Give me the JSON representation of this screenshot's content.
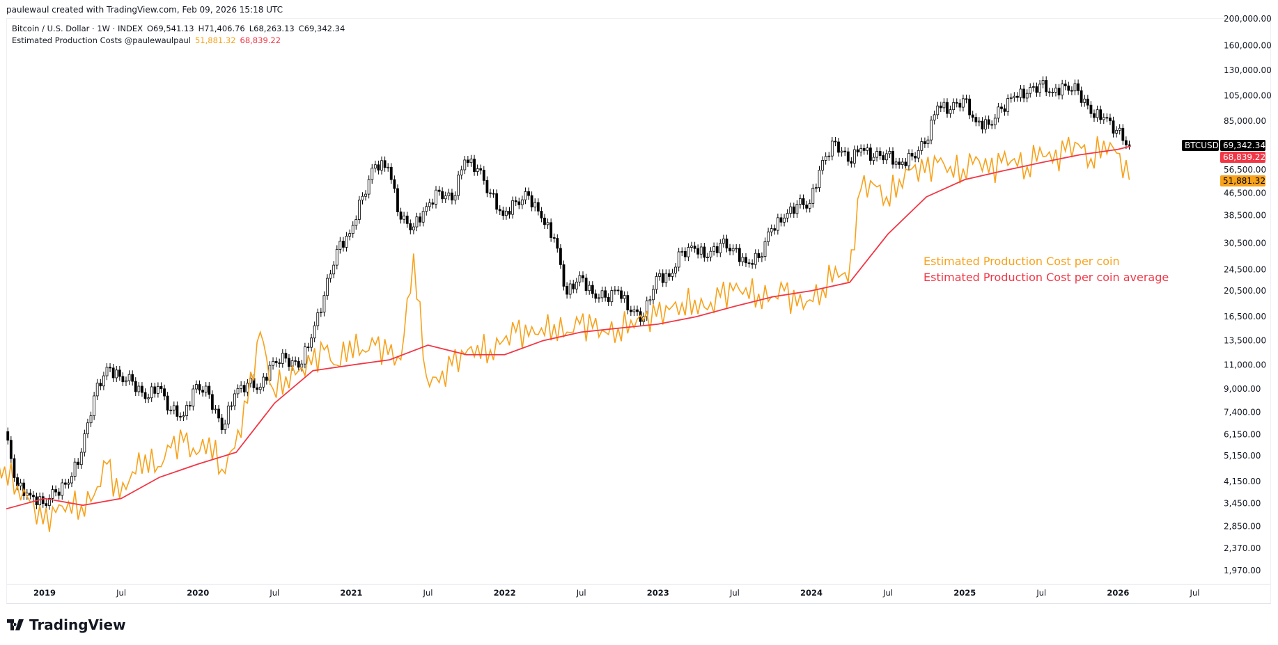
{
  "credit": "paulewaul created with TradingView.com, Feb 09, 2026 15:18 UTC",
  "legend": {
    "symbol": "Bitcoin / U.S. Dollar · 1W · INDEX",
    "open": "O69,541.13",
    "high": "H71,406.76",
    "low": "L68,263.13",
    "close": "C69,342.34",
    "indicator": "Estimated Production Costs @paulewaulpaul",
    "ind_val1": "51,881.32",
    "ind_val2": "68,839.22"
  },
  "price_labels": {
    "ticker": "BTCUSD",
    "last": "69,342.34",
    "avg": "68,839.22",
    "cost": "51,881.32"
  },
  "annotations": {
    "cost": "Estimated Production Cost per coin",
    "avg": "Estimated Production Cost per coin average"
  },
  "logo": "TradingView",
  "colors": {
    "cost": "#f7a21b",
    "avg": "#f23645",
    "up": "#ffffff",
    "down": "#000000"
  },
  "chart_data": {
    "type": "line",
    "title": "Bitcoin / U.S. Dollar · 1W · INDEX",
    "yscale": "log",
    "ylim": [
      1800,
      210000
    ],
    "y_ticks": [
      "200,000.00",
      "160,000.00",
      "130,000.00",
      "105,000.00",
      "85,000.00",
      "56,500.00",
      "46,500.00",
      "38,500.00",
      "30,500.00",
      "24,500.00",
      "20,500.00",
      "16,500.00",
      "13,500.00",
      "11,000.00",
      "9,000.00",
      "7,400.00",
      "6,150.00",
      "5,150.00",
      "4,150.00",
      "3,450.00",
      "2,850.00",
      "2,370.00",
      "1,970.00"
    ],
    "x_ticks": [
      {
        "label": "2019",
        "m": 3,
        "bold": true
      },
      {
        "label": "Jul",
        "m": 9
      },
      {
        "label": "2020",
        "m": 15,
        "bold": true
      },
      {
        "label": "Jul",
        "m": 21
      },
      {
        "label": "2021",
        "m": 27,
        "bold": true
      },
      {
        "label": "Jul",
        "m": 33
      },
      {
        "label": "2022",
        "m": 39,
        "bold": true
      },
      {
        "label": "Jul",
        "m": 45
      },
      {
        "label": "2023",
        "m": 51,
        "bold": true
      },
      {
        "label": "Jul",
        "m": 57
      },
      {
        "label": "2024",
        "m": 63,
        "bold": true
      },
      {
        "label": "Jul",
        "m": 69
      },
      {
        "label": "2025",
        "m": 75,
        "bold": true
      },
      {
        "label": "Jul",
        "m": 81
      },
      {
        "label": "2026",
        "m": 87,
        "bold": true
      },
      {
        "label": "Jul",
        "m": 93
      }
    ],
    "month_start": "2018-10",
    "btc_monthly_close": [
      6300,
      4000,
      3700,
      3450,
      3800,
      4100,
      5300,
      8500,
      10800,
      10000,
      9600,
      8300,
      9200,
      7550,
      7200,
      9350,
      8600,
      6400,
      8650,
      9450,
      9150,
      11350,
      11650,
      10800,
      13800,
      19700,
      29000,
      33100,
      45200,
      58900,
      57700,
      37300,
      35000,
      41500,
      47100,
      43800,
      61300,
      57000,
      46300,
      38500,
      43200,
      45500,
      37700,
      31800,
      19900,
      23300,
      20000,
      19400,
      20500,
      17200,
      16500,
      23100,
      23100,
      28500,
      29200,
      27200,
      30500,
      29200,
      25900,
      27000,
      34500,
      37700,
      42300,
      42600,
      61100,
      71300,
      60600,
      67500,
      62700,
      64600,
      59000,
      63300,
      70200,
      96400,
      93400,
      102400,
      84300,
      82500,
      94200,
      104600,
      107100,
      115700,
      108200,
      114000,
      109500,
      90400,
      87500,
      78600,
      69342.34
    ],
    "series": [
      {
        "name": "Estimated Production Cost per coin",
        "values": [
          4700,
          4000,
          3500,
          2900,
          3200,
          3500,
          3400,
          3700,
          4800,
          3600,
          4500,
          5200,
          4700,
          5500,
          5800,
          5200,
          6000,
          4600,
          5500,
          8000,
          14500,
          9000,
          10000,
          10500,
          11000,
          12500,
          11000,
          13500,
          12500,
          13000,
          12000,
          11500,
          28000,
          10000,
          9500,
          11000,
          12000,
          13000,
          12500,
          13500,
          14500,
          14000,
          15000,
          15500,
          14500,
          15500,
          15000,
          14500,
          15000,
          16000,
          16000,
          16500,
          17500,
          18500,
          19000,
          17500,
          19500,
          20500,
          21000,
          20000,
          19500,
          20500,
          18000,
          19000,
          21000,
          25000,
          22000,
          48000,
          50000,
          45000,
          52000,
          57000,
          55000,
          60000,
          58000,
          57000,
          63000,
          55000,
          60000,
          62000,
          58000,
          68000,
          60000,
          66000,
          70000,
          62000,
          72000,
          65000,
          51881.32
        ]
      },
      {
        "name": "Estimated Production Cost per coin average",
        "months": [
          0,
          3,
          6,
          9,
          12,
          15,
          18,
          21,
          24,
          27,
          30,
          33,
          36,
          39,
          42,
          45,
          48,
          51,
          54,
          57,
          60,
          63,
          66,
          69,
          72,
          75,
          78,
          81,
          84,
          87,
          88
        ],
        "values": [
          3300,
          3600,
          3400,
          3600,
          4300,
          4800,
          5300,
          8000,
          10500,
          11000,
          11500,
          13000,
          12000,
          12000,
          13500,
          14500,
          15000,
          15500,
          16500,
          18000,
          19500,
          20500,
          22000,
          33000,
          45000,
          52000,
          56000,
          60000,
          64000,
          67000,
          68839.22
        ]
      }
    ]
  }
}
